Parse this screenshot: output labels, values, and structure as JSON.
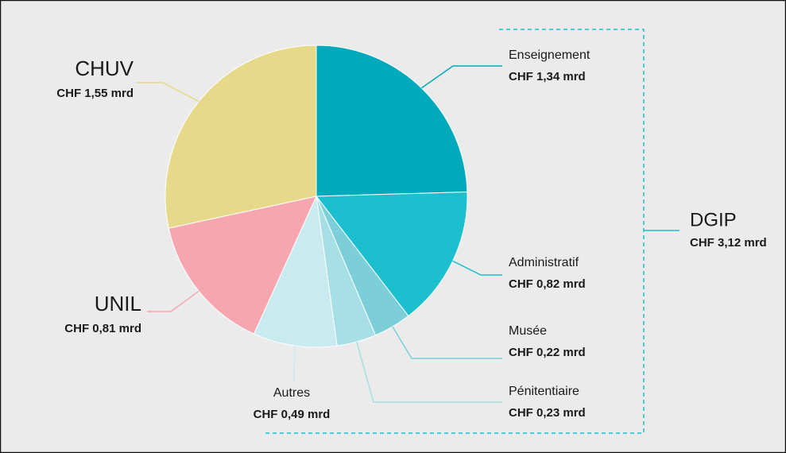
{
  "chart_data": {
    "type": "pie",
    "categories": [
      "Enseignement",
      "Administratif",
      "Musée",
      "Pénitentiaire",
      "Autres",
      "UNIL",
      "CHUV"
    ],
    "values": [
      1.34,
      0.82,
      0.22,
      0.23,
      0.49,
      0.81,
      1.55
    ],
    "value_labels": [
      "CHF 1,34 mrd",
      "CHF 0,82 mrd",
      "CHF 0,22 mrd",
      "CHF 0,23 mrd",
      "CHF 0,49 mrd",
      "CHF 0,81 mrd",
      "CHF 1,55 mrd"
    ],
    "colors": [
      "#00aabb",
      "#1bbfce",
      "#7ccfd8",
      "#a6dfe5",
      "#c9eaee",
      "#f5a6ae",
      "#e6d98a"
    ],
    "group": {
      "name": "DGIP",
      "value": 3.12,
      "value_label": "CHF 3,12 mrd"
    }
  }
}
